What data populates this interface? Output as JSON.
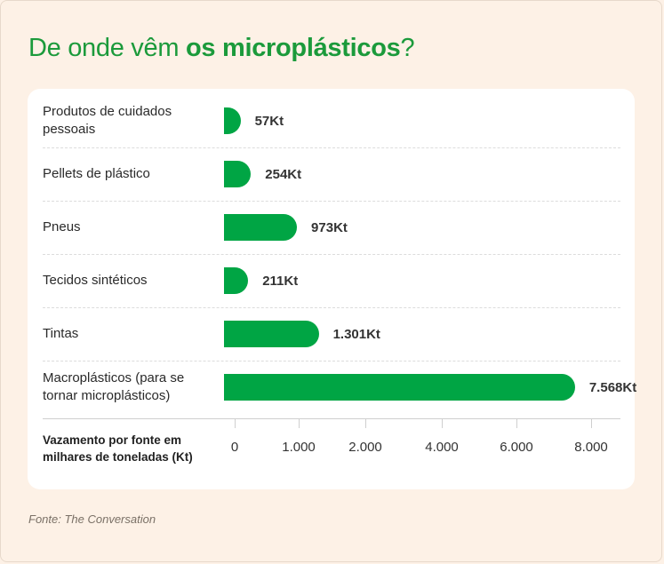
{
  "title": {
    "prefix": "De onde vêm ",
    "bold": "os microplásticos",
    "suffix": "?"
  },
  "chart_data": {
    "type": "bar",
    "orientation": "horizontal",
    "categories": [
      "Produtos de cuidados pessoais",
      "Pellets de plástico",
      "Pneus",
      "Tecidos sintéticos",
      "Tintas",
      "Macroplásticos (para se tornar microplásticos)"
    ],
    "values": [
      57,
      254,
      973,
      211,
      1301,
      7568
    ],
    "value_labels": [
      "57Kt",
      "254Kt",
      "973Kt",
      "211Kt",
      "1.301Kt",
      "7.568Kt"
    ],
    "xlabel": "Vazamento por fonte em milhares de toneladas (Kt)",
    "x_ticks": [
      0,
      1000,
      2000,
      4000,
      6000,
      8000
    ],
    "x_tick_labels": [
      "0",
      "1.000",
      "2.000",
      "4.000",
      "6.000",
      "8.000"
    ],
    "color": "#00a544",
    "grid": false
  },
  "source": "Fonte: The Conversation",
  "colors": {
    "title": "#1b9a3b",
    "bar": "#00a544",
    "background": "#fdf1e6"
  }
}
